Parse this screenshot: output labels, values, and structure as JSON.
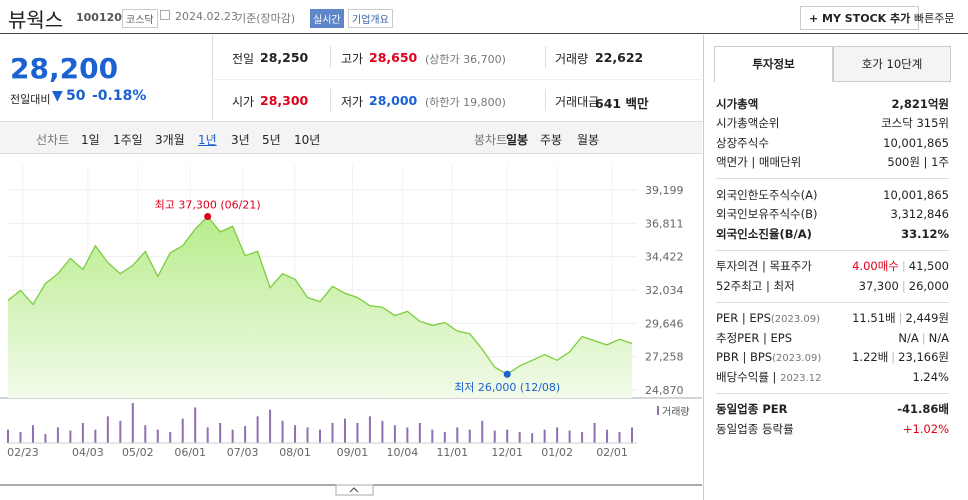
{
  "header": {
    "name": "뷰웍스",
    "code": "100120",
    "market": "코스닥",
    "date": "2024.02.23",
    "basis": "기준(장마감)",
    "realtime": "실시간",
    "company": "기업개요",
    "mystock": "+ MY STOCK 추가",
    "quick": "빠른주문"
  },
  "quote": {
    "price": "28,200",
    "change_label": "전일대비",
    "change": "50",
    "change_pct": "-0.18%"
  },
  "stats": [
    [
      {
        "label": "전일",
        "value": "28,250"
      },
      {
        "label": "고가",
        "value": "28,650",
        "note": "(상한가 36,700)"
      },
      {
        "label": "거래량",
        "value": "22,622"
      }
    ],
    [
      {
        "label": "시가",
        "value": "28,300"
      },
      {
        "label": "저가",
        "value": "28,000",
        "note": "(하한가 19,800)"
      },
      {
        "label": "거래대금",
        "value": "641 백만"
      }
    ]
  ],
  "tabs": {
    "line_label": "선차트",
    "line": [
      "1일",
      "1주일",
      "3개월",
      "1년",
      "3년",
      "5년",
      "10년"
    ],
    "candle_label": "봉차트",
    "candle": [
      "일봉",
      "주봉",
      "월봉"
    ]
  },
  "chart_data": {
    "type": "area",
    "color": "#7ccd3c",
    "x": [
      0,
      5,
      10,
      15,
      20,
      25,
      30,
      35,
      40,
      45,
      50,
      55,
      60,
      65,
      70,
      75,
      80,
      85,
      90,
      95,
      100,
      105,
      110,
      115,
      120,
      125,
      130,
      135,
      140,
      145,
      150,
      155,
      160,
      165,
      170,
      175,
      180,
      185,
      190,
      195,
      200,
      205,
      210,
      215,
      220,
      225,
      230,
      235,
      240,
      245,
      250
    ],
    "values": [
      31300,
      32000,
      31000,
      32500,
      33200,
      34300,
      33500,
      35200,
      34000,
      33200,
      33800,
      34800,
      33000,
      34700,
      35200,
      36400,
      37300,
      36200,
      36600,
      34500,
      34800,
      32200,
      33200,
      32800,
      31500,
      31200,
      32300,
      31800,
      31500,
      30900,
      30800,
      30200,
      30500,
      29800,
      29500,
      29700,
      29100,
      28900,
      27800,
      26500,
      26000,
      26600,
      27000,
      27400,
      27000,
      27600,
      28700,
      28400,
      28100,
      28500,
      28200
    ],
    "xlim": [
      0,
      252
    ],
    "ylim": [
      24870,
      39199
    ],
    "yticks": [
      {
        "value": 24870,
        "label": "24,870"
      },
      {
        "value": 27258,
        "label": "27,258"
      },
      {
        "value": 29646,
        "label": "29,646"
      },
      {
        "value": 32034,
        "label": "32,034"
      },
      {
        "value": 34422,
        "label": "34,422"
      },
      {
        "value": 36811,
        "label": "36,811"
      },
      {
        "value": 39199,
        "label": "39,199"
      }
    ],
    "xticks": [
      {
        "value": 6,
        "label": "02/23"
      },
      {
        "value": 32,
        "label": "04/03"
      },
      {
        "value": 52,
        "label": "05/02"
      },
      {
        "value": 73,
        "label": "06/01"
      },
      {
        "value": 94,
        "label": "07/03"
      },
      {
        "value": 115,
        "label": "08/01"
      },
      {
        "value": 138,
        "label": "09/01"
      },
      {
        "value": 158,
        "label": "10/04"
      },
      {
        "value": 178,
        "label": "11/01"
      },
      {
        "value": 200,
        "label": "12/01"
      },
      {
        "value": 220,
        "label": "01/02"
      },
      {
        "value": 242,
        "label": "02/01"
      }
    ],
    "grid": true,
    "annotations": [
      {
        "text": "최고 37,300 (06/21)",
        "x": 80,
        "value": 37300,
        "color": "#e0001b"
      },
      {
        "text": "최저 26,000 (12/08)",
        "x": 200,
        "value": 26000,
        "color": "#1b61d1"
      }
    ],
    "volume": {
      "name": "거래량",
      "color": "#8e6fb0",
      "values": [
        30,
        25,
        40,
        20,
        35,
        28,
        45,
        30,
        60,
        50,
        90,
        40,
        30,
        25,
        55,
        80,
        35,
        45,
        30,
        38,
        60,
        75,
        50,
        40,
        35,
        30,
        45,
        55,
        45,
        60,
        50,
        40,
        35,
        45,
        30,
        25,
        35,
        30,
        50,
        28,
        30,
        25,
        22,
        30,
        35,
        28,
        25,
        45,
        30,
        25,
        35
      ]
    }
  },
  "side": {
    "tabs": [
      "투자정보",
      "호가 10단계"
    ],
    "sections": [
      {
        "rows": [
          {
            "label": "시가총액",
            "values": [
              "2,821억원"
            ]
          },
          {
            "label": "시가총액순위",
            "values": [
              "코스닥 315위"
            ]
          },
          {
            "label": "상장주식수",
            "values": [
              "10,001,865"
            ]
          },
          {
            "label": "액면가 | 매매단위",
            "values": [
              "500원 | 1주"
            ]
          }
        ]
      },
      {
        "rows": [
          {
            "label": "외국인한도주식수(A)",
            "values": [
              "10,001,865"
            ]
          },
          {
            "label": "외국인보유주식수(B)",
            "values": [
              "3,312,846"
            ]
          },
          {
            "label": "외국인소진율(B/A)",
            "values": [
              "33.12%"
            ]
          }
        ]
      },
      {
        "rows": [
          {
            "label": "투자의견 | 목표주가",
            "values": [
              "4.00매수",
              "41,500"
            ]
          },
          {
            "label": "52주최고 | 최저",
            "values": [
              "37,300",
              "26,000"
            ]
          }
        ]
      },
      {
        "rows": [
          {
            "label": "PER | EPS",
            "note": "(2023.09)",
            "values": [
              "11.51배",
              "2,449원"
            ]
          },
          {
            "label": "추정PER | EPS",
            "values": [
              "N/A",
              "N/A"
            ]
          },
          {
            "label": "PBR | BPS",
            "note": "(2023.09)",
            "values": [
              "1.22배",
              "23,166원"
            ]
          },
          {
            "label": "배당수익률 | ",
            "note": "2023.12",
            "values": [
              "1.24%"
            ]
          }
        ]
      },
      {
        "rows": [
          {
            "label": "동일업종 PER",
            "values": [
              "-41.86배"
            ]
          },
          {
            "label": "동일업종 등락률",
            "values": [
              "+1.02%"
            ]
          }
        ]
      }
    ]
  }
}
